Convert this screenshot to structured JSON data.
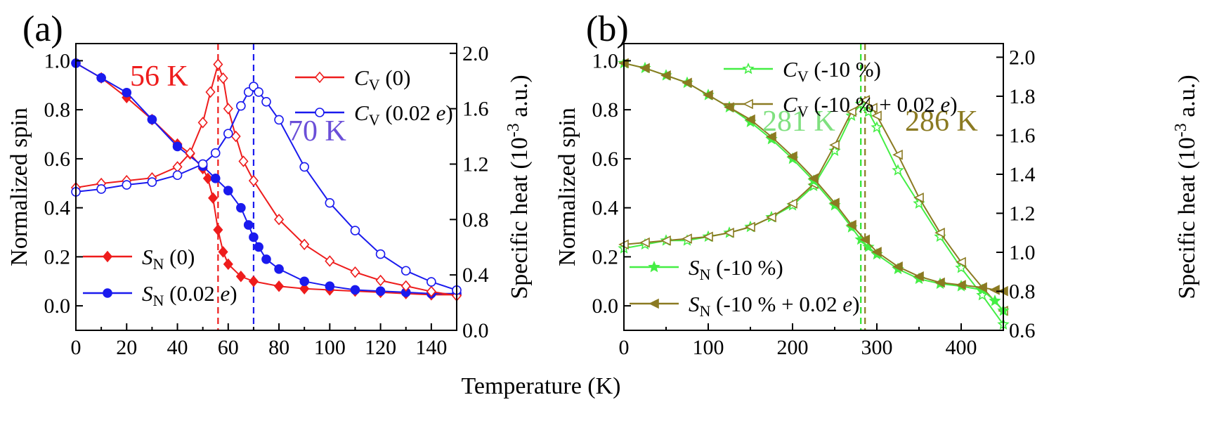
{
  "common_xlabel": "Temperature (K)",
  "chart_data": [
    {
      "panel": "(a)",
      "type": "line",
      "xlabel": "",
      "ylabel": "Normalized spin",
      "y2label": "Specific heat (10-3 a.u.)",
      "xlim": [
        0,
        150
      ],
      "ylim": [
        -0.1,
        1.07
      ],
      "y2lim": [
        0.0,
        2.07
      ],
      "xticks": [
        0,
        20,
        40,
        60,
        80,
        100,
        120,
        140
      ],
      "yticks": [
        0.0,
        0.2,
        0.4,
        0.6,
        0.8,
        1.0
      ],
      "y2ticks": [
        0.0,
        0.4,
        0.8,
        1.2,
        1.6,
        2.0
      ],
      "legend_loc": "top-right and bottom-left",
      "annotations": [
        {
          "text": "56 K",
          "color": "#ee1c1c"
        },
        {
          "text": "70 K",
          "color": "#6b4fd8"
        }
      ],
      "vlines": [
        {
          "x": 56,
          "color": "#ee1c1c"
        },
        {
          "x": 70,
          "color": "#1a1aee"
        }
      ],
      "series": [
        {
          "name": "SN (0)",
          "label_main": "S",
          "label_sub": "N",
          "label_rest": " (0)",
          "axis": "left",
          "color": "#ee1c1c",
          "marker": "diamond-filled",
          "x": [
            0,
            10,
            20,
            30,
            40,
            45,
            50,
            52,
            54,
            56,
            58,
            60,
            65,
            70,
            80,
            90,
            100,
            110,
            120,
            130,
            140,
            150
          ],
          "y": [
            0.99,
            0.93,
            0.85,
            0.76,
            0.66,
            0.62,
            0.56,
            0.52,
            0.44,
            0.31,
            0.22,
            0.17,
            0.12,
            0.1,
            0.08,
            0.07,
            0.065,
            0.06,
            0.055,
            0.05,
            0.045,
            0.045
          ]
        },
        {
          "name": "SN (0.02 e)",
          "label_main": "S",
          "label_sub": "N",
          "label_rest": " (0.02 e)",
          "axis": "left",
          "color": "#1a1aee",
          "marker": "circle-filled",
          "x": [
            0,
            10,
            20,
            30,
            40,
            50,
            55,
            60,
            65,
            68,
            70,
            72,
            75,
            80,
            90,
            100,
            110,
            120,
            130,
            140,
            150
          ],
          "y": [
            0.99,
            0.93,
            0.87,
            0.76,
            0.65,
            0.57,
            0.52,
            0.47,
            0.4,
            0.33,
            0.28,
            0.24,
            0.19,
            0.15,
            0.1,
            0.08,
            0.065,
            0.06,
            0.055,
            0.05,
            0.05
          ]
        },
        {
          "name": "CV (0)",
          "label_main": "C",
          "label_sub": "V",
          "label_rest": " (0)",
          "axis": "right",
          "color": "#ee1c1c",
          "marker": "diamond-open",
          "x": [
            0,
            10,
            20,
            30,
            40,
            45,
            50,
            53,
            56,
            58,
            60,
            63,
            66,
            70,
            80,
            90,
            100,
            110,
            120,
            130,
            140,
            150
          ],
          "y": [
            1.03,
            1.06,
            1.08,
            1.1,
            1.18,
            1.28,
            1.5,
            1.72,
            1.92,
            1.82,
            1.6,
            1.4,
            1.22,
            1.08,
            0.8,
            0.62,
            0.5,
            0.42,
            0.36,
            0.32,
            0.28,
            0.25
          ]
        },
        {
          "name": "CV (0.02 e)",
          "label_main": "C",
          "label_sub": "V",
          "label_rest": " (0.02 e)",
          "axis": "right",
          "color": "#1a1aee",
          "marker": "circle-open",
          "x": [
            0,
            10,
            20,
            30,
            40,
            50,
            55,
            60,
            65,
            68,
            70,
            72,
            75,
            80,
            90,
            100,
            110,
            120,
            130,
            140,
            150
          ],
          "y": [
            1.0,
            1.02,
            1.05,
            1.07,
            1.12,
            1.2,
            1.28,
            1.42,
            1.62,
            1.72,
            1.76,
            1.72,
            1.65,
            1.52,
            1.18,
            0.92,
            0.72,
            0.55,
            0.43,
            0.35,
            0.29
          ]
        }
      ]
    },
    {
      "panel": "(b)",
      "type": "line",
      "xlabel": "",
      "ylabel": "Normalized spin",
      "y2label": "Specific heat (10-3 a.u.)",
      "xlim": [
        0,
        450
      ],
      "ylim": [
        -0.1,
        1.07
      ],
      "y2lim": [
        0.6,
        2.07
      ],
      "xticks": [
        0,
        100,
        200,
        300,
        400
      ],
      "yticks": [
        0.0,
        0.2,
        0.4,
        0.6,
        0.8,
        1.0
      ],
      "y2ticks": [
        0.6,
        0.8,
        1.0,
        1.2,
        1.4,
        1.6,
        1.8,
        2.0
      ],
      "legend_loc": "top-right and bottom-left",
      "annotations": [
        {
          "text": "281 K",
          "color": "#7fe07f"
        },
        {
          "text": "286 K",
          "color": "#8b7a22"
        }
      ],
      "vlines": [
        {
          "x": 281,
          "color": "#2ee62e"
        },
        {
          "x": 286,
          "color": "#8b7a22"
        }
      ],
      "series": [
        {
          "name": "CV (-10 %)",
          "label_main": "C",
          "label_sub": "V",
          "label_rest": " (-10 %)",
          "axis": "right",
          "color": "#44ee44",
          "marker": "star-open",
          "x": [
            0,
            25,
            50,
            75,
            100,
            125,
            150,
            175,
            200,
            225,
            250,
            270,
            281,
            290,
            300,
            325,
            350,
            375,
            400,
            425,
            450
          ],
          "y": [
            1.02,
            1.04,
            1.06,
            1.06,
            1.08,
            1.1,
            1.13,
            1.18,
            1.24,
            1.34,
            1.52,
            1.7,
            1.76,
            1.72,
            1.64,
            1.42,
            1.25,
            1.08,
            0.92,
            0.78,
            0.63
          ]
        },
        {
          "name": "CV (-10 % + 0.02 e)",
          "label_main": "C",
          "label_sub": "V",
          "label_rest": " (-10 % + 0.02 e)",
          "axis": "right",
          "color": "#8b7a22",
          "marker": "triangle-left-open",
          "x": [
            0,
            25,
            50,
            75,
            100,
            125,
            150,
            175,
            200,
            225,
            250,
            270,
            286,
            295,
            300,
            325,
            350,
            375,
            400,
            425,
            450
          ],
          "y": [
            1.04,
            1.05,
            1.06,
            1.07,
            1.08,
            1.1,
            1.13,
            1.18,
            1.25,
            1.35,
            1.55,
            1.72,
            1.78,
            1.74,
            1.7,
            1.5,
            1.28,
            1.1,
            0.95,
            0.82,
            0.7
          ]
        },
        {
          "name": "SN (-10 %)",
          "label_main": "S",
          "label_sub": "N",
          "label_rest": " (-10 %)",
          "axis": "left",
          "color": "#44ee44",
          "marker": "star-filled",
          "x": [
            0,
            25,
            50,
            75,
            100,
            125,
            150,
            175,
            200,
            225,
            250,
            270,
            281,
            290,
            300,
            325,
            350,
            375,
            400,
            425,
            440,
            450
          ],
          "y": [
            0.99,
            0.97,
            0.94,
            0.91,
            0.86,
            0.81,
            0.75,
            0.68,
            0.6,
            0.51,
            0.41,
            0.32,
            0.27,
            0.24,
            0.21,
            0.15,
            0.11,
            0.09,
            0.08,
            0.065,
            0.02,
            -0.02
          ]
        },
        {
          "name": "SN (-10 % + 0.02 e)",
          "label_main": "S",
          "label_sub": "N",
          "label_rest": " (-10 % + 0.02 e)",
          "axis": "left",
          "color": "#8b7a22",
          "marker": "triangle-left-filled",
          "x": [
            0,
            25,
            50,
            75,
            100,
            125,
            150,
            175,
            200,
            225,
            250,
            270,
            286,
            300,
            325,
            350,
            375,
            400,
            425,
            440,
            450
          ],
          "y": [
            0.99,
            0.97,
            0.94,
            0.91,
            0.86,
            0.81,
            0.76,
            0.69,
            0.61,
            0.52,
            0.42,
            0.33,
            0.27,
            0.22,
            0.16,
            0.12,
            0.095,
            0.085,
            0.075,
            0.065,
            0.06
          ]
        }
      ]
    }
  ]
}
